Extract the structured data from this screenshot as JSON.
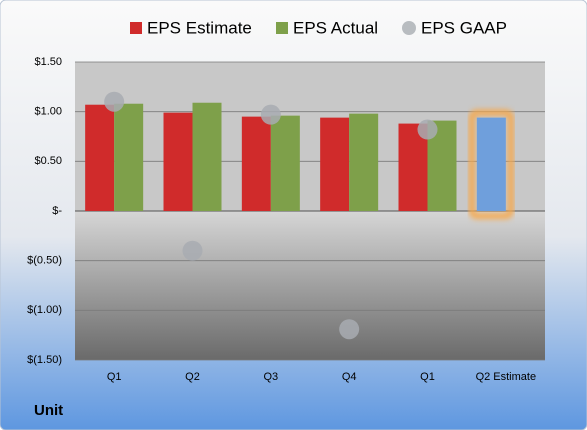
{
  "chart_data": {
    "type": "bar",
    "categories": [
      "Q1",
      "Q2",
      "Q3",
      "Q4",
      "Q1",
      "Q2 Estimate"
    ],
    "series": [
      {
        "name": "EPS Estimate",
        "color": "#d02b2b",
        "values": [
          1.07,
          0.99,
          0.95,
          0.94,
          0.88,
          0.94
        ]
      },
      {
        "name": "EPS Actual",
        "color": "#7ea04a",
        "values": [
          1.08,
          1.09,
          0.96,
          0.98,
          0.91,
          null
        ]
      },
      {
        "name": "EPS GAAP",
        "color": "#a8acb2",
        "marker": "circle",
        "values": [
          1.1,
          -0.4,
          0.97,
          -1.19,
          0.82,
          null
        ]
      }
    ],
    "highlight": {
      "series": 0,
      "index": 5,
      "color": "#6f9fdc",
      "glow": "#f6a94e"
    },
    "ylim": [
      -1.5,
      1.5
    ],
    "yticks": [
      {
        "value": 1.5,
        "label": "$1.50"
      },
      {
        "value": 1.0,
        "label": "$1.00"
      },
      {
        "value": 0.5,
        "label": "$0.50"
      },
      {
        "value": 0,
        "label": "$-"
      },
      {
        "value": -0.5,
        "label": "$(0.50)"
      },
      {
        "value": -1.0,
        "label": "$(1.00)"
      },
      {
        "value": -1.5,
        "label": "$(1.50)"
      }
    ],
    "grid": true,
    "legend": "top",
    "footer": "Unit"
  }
}
